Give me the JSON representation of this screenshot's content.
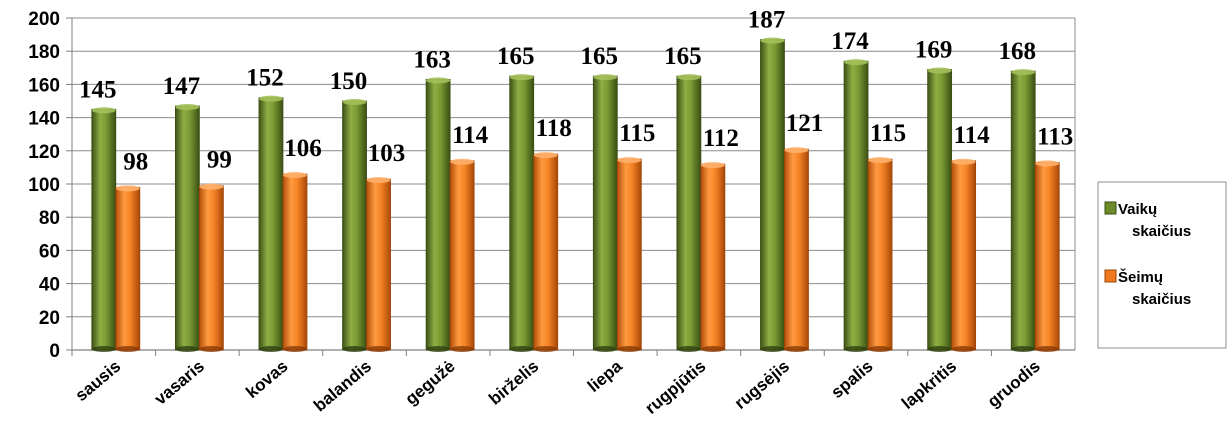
{
  "chart_data": {
    "type": "bar",
    "categories": [
      "sausis",
      "vasaris",
      "kovas",
      "balandis",
      "gegužė",
      "birželis",
      "liepa",
      "rugpjūtis",
      "rugsėjis",
      "spalis",
      "lapkritis",
      "gruodis"
    ],
    "series": [
      {
        "name": [
          "Vaikų",
          "skaičius"
        ],
        "color": "#6E8B2C",
        "values": [
          145,
          147,
          152,
          150,
          163,
          165,
          165,
          165,
          187,
          174,
          169,
          168
        ]
      },
      {
        "name": [
          "Šeimų",
          "skaičius"
        ],
        "color": "#F07820",
        "values": [
          98,
          99,
          106,
          103,
          114,
          118,
          115,
          112,
          121,
          115,
          114,
          113
        ]
      }
    ],
    "ylim": [
      0,
      200
    ],
    "yticks": [
      0,
      20,
      40,
      60,
      80,
      100,
      120,
      140,
      160,
      180,
      200
    ],
    "grid": true,
    "legend": "right"
  }
}
